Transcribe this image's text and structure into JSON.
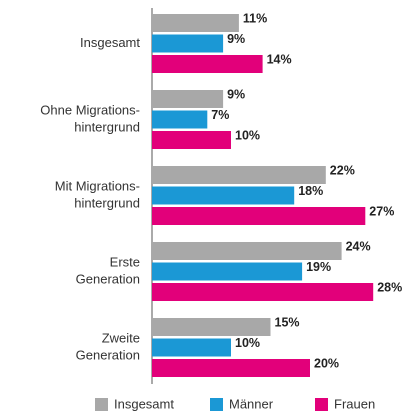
{
  "chart_data": {
    "type": "bar",
    "orientation": "horizontal",
    "categories": [
      "Insgesamt",
      "Ohne Migrations-\nhintergrund",
      "Mit Migrations-\nhintergrund",
      "Erste\nGeneration",
      "Zweite\nGeneration"
    ],
    "series": [
      {
        "name": "Insgesamt",
        "color": "#a8a8a8",
        "values": [
          11,
          9,
          22,
          24,
          15
        ],
        "value_labels": [
          "11%",
          "9%",
          "22%",
          "24%",
          "15%"
        ]
      },
      {
        "name": "Männer",
        "color": "#1b98d5",
        "values": [
          9,
          7,
          18,
          19,
          10
        ],
        "value_labels": [
          "9%",
          "7%",
          "18%",
          "19%",
          "10%"
        ]
      },
      {
        "name": "Frauen",
        "color": "#e2007a",
        "values": [
          14,
          10,
          27,
          28,
          20
        ],
        "value_labels": [
          "14%",
          "10%",
          "27%",
          "28%",
          "20%"
        ]
      }
    ]
  }
}
